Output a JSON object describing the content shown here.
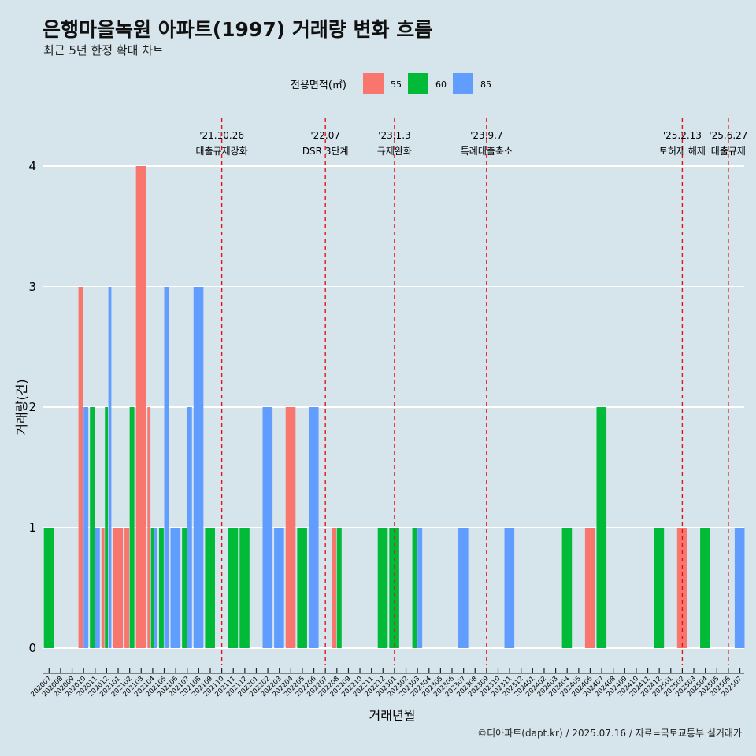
{
  "title": "은행마을녹원 아파트(1997) 거래량 변화 흐름",
  "subtitle": "최근 5년 한정 확대 차트",
  "caption": "©디아파트(dapt.kr) / 2025.07.16 / 자료=국토교통부 실거래가",
  "chart_data": {
    "type": "bar",
    "xlabel": "거래년월",
    "ylabel": "거래량(건)",
    "ylim": [
      0,
      4
    ],
    "yticks": [
      0,
      1,
      2,
      3,
      4
    ],
    "grid": true,
    "legend": {
      "title": "전용면적(㎡)",
      "position": "top",
      "entries": [
        {
          "label": "55",
          "color": "#f8766d"
        },
        {
          "label": "60",
          "color": "#00ba38"
        },
        {
          "label": "85",
          "color": "#619cff"
        }
      ]
    },
    "categories": [
      "202007",
      "202008",
      "202009",
      "202010",
      "202011",
      "202012",
      "202101",
      "202102",
      "202103",
      "202104",
      "202105",
      "202106",
      "202107",
      "202108",
      "202109",
      "202110",
      "202111",
      "202112",
      "202201",
      "202202",
      "202203",
      "202204",
      "202205",
      "202206",
      "202207",
      "202208",
      "202209",
      "202210",
      "202211",
      "202212",
      "202301",
      "202302",
      "202303",
      "202304",
      "202305",
      "202306",
      "202307",
      "202308",
      "202309",
      "202310",
      "202311",
      "202312",
      "202401",
      "202402",
      "202403",
      "202404",
      "202405",
      "202406",
      "202407",
      "202408",
      "202409",
      "202410",
      "202411",
      "202412",
      "202501",
      "202502",
      "202503",
      "202504",
      "202505",
      "202506",
      "202507"
    ],
    "series": [
      {
        "name": "55",
        "color": "#f8766d",
        "values": [
          0,
          0,
          0,
          3,
          0,
          1,
          1,
          1,
          4,
          2,
          0,
          0,
          0,
          0,
          0,
          0,
          0,
          0,
          0,
          0,
          0,
          2,
          0,
          0,
          0,
          1,
          0,
          0,
          0,
          0,
          0,
          0,
          0,
          0,
          0,
          0,
          0,
          0,
          0,
          0,
          0,
          0,
          0,
          0,
          0,
          0,
          0,
          1,
          0,
          0,
          0,
          0,
          0,
          0,
          0,
          1,
          0,
          0,
          0,
          0,
          0
        ]
      },
      {
        "name": "60",
        "color": "#00ba38",
        "values": [
          1,
          0,
          0,
          0,
          2,
          2,
          0,
          2,
          0,
          1,
          1,
          0,
          1,
          0,
          1,
          0,
          1,
          1,
          0,
          0,
          0,
          0,
          1,
          0,
          0,
          1,
          0,
          0,
          0,
          1,
          1,
          0,
          1,
          0,
          0,
          0,
          0,
          0,
          0,
          0,
          0,
          0,
          0,
          0,
          0,
          1,
          0,
          0,
          2,
          0,
          0,
          0,
          0,
          1,
          0,
          0,
          0,
          1,
          0,
          0,
          0
        ]
      },
      {
        "name": "85",
        "color": "#619cff",
        "values": [
          0,
          0,
          0,
          2,
          1,
          3,
          0,
          0,
          0,
          1,
          3,
          1,
          2,
          3,
          0,
          0,
          0,
          0,
          0,
          2,
          1,
          0,
          0,
          2,
          0,
          0,
          0,
          0,
          0,
          0,
          0,
          0,
          1,
          0,
          0,
          0,
          1,
          0,
          0,
          0,
          1,
          0,
          0,
          0,
          0,
          0,
          0,
          0,
          0,
          0,
          0,
          0,
          0,
          0,
          0,
          0,
          0,
          0,
          0,
          0,
          1
        ]
      }
    ],
    "events": [
      {
        "date": "'21.10.26",
        "label": "대출규제강화",
        "at": "202110"
      },
      {
        "date": "'22.07",
        "label": "DSR 3단계",
        "at": "202207"
      },
      {
        "date": "'23.1.3",
        "label": "규제완화",
        "at": "202301"
      },
      {
        "date": "'23.9.7",
        "label": "특례대출축소",
        "at": "202309"
      },
      {
        "date": "'25.2.13",
        "label": "토허제 해제",
        "at": "202502"
      },
      {
        "date": "'25.6.27",
        "label": "대출규제",
        "at": "202506"
      }
    ]
  }
}
